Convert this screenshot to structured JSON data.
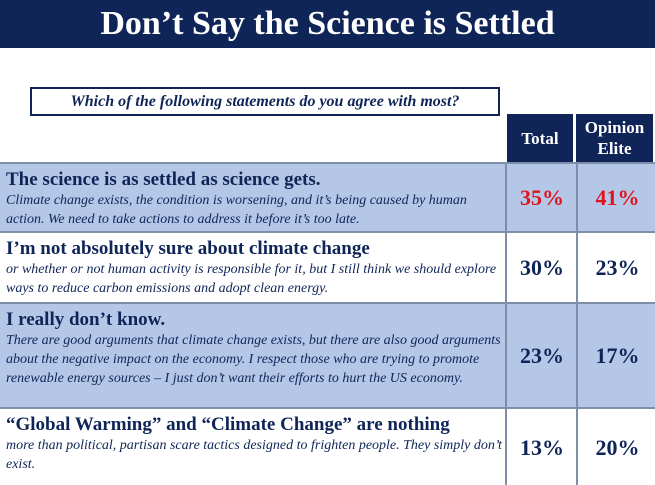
{
  "header": {
    "title": "Don’t Say the Science is Settled"
  },
  "question": "Which of the following statements do you agree with most?",
  "table": {
    "columns": [
      "Total",
      "Opinion Elite"
    ],
    "rows": [
      {
        "title": "The science is as settled as science gets.",
        "body": "Climate change exists, the condition is worsening, and it’s being caused by human action.  We need to take actions to address it before it’s too late.",
        "values": [
          "35%",
          "41%"
        ]
      },
      {
        "title": "I’m not absolutely sure about climate change",
        "body": "or whether or not human activity is responsible for it, but I still think we should explore ways to reduce carbon emissions and adopt clean energy.",
        "values": [
          "30%",
          "23%"
        ]
      },
      {
        "title": "I really don’t know.",
        "body": "There are good arguments that climate change exists, but there are also good arguments about the negative impact on the economy.  I respect those who are trying to promote renewable energy sources – I just don’t want their efforts to hurt the US economy.",
        "values": [
          "23%",
          "17%"
        ]
      },
      {
        "title": "“Global Warming” and “Climate Change” are nothing",
        "body": "more than political, partisan scare tactics designed to frighten people.  They simply don’t exist.",
        "values": [
          "13%",
          "20%"
        ]
      }
    ]
  }
}
